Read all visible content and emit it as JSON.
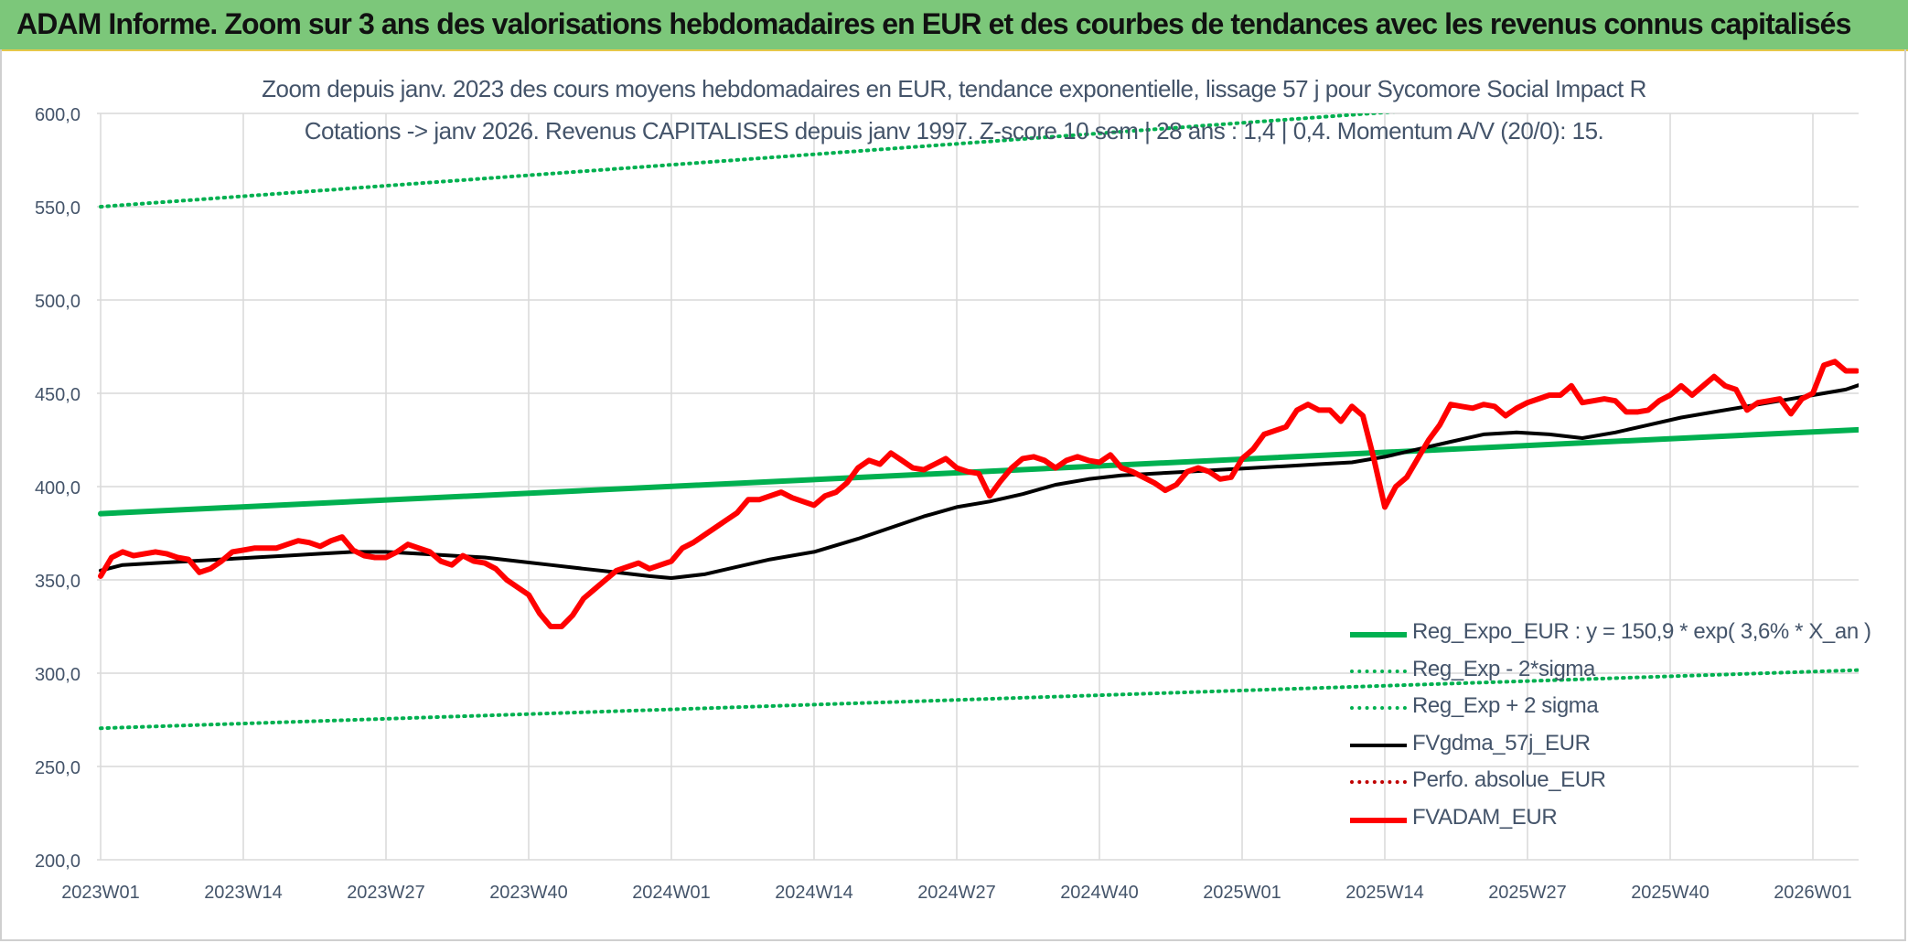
{
  "banner": {
    "title": "ADAM Informe. Zoom sur 3 ans des valorisations hebdomadaires en EUR et des courbes de tendances avec les revenus connus capitalisés"
  },
  "colors": {
    "banner_bg": "#7cc77a",
    "trend_green": "#00b050",
    "price_red": "#ff0000",
    "smooth_black": "#000000",
    "text": "#44546a",
    "grid": "#d9d9d9"
  },
  "chart_data": {
    "type": "line",
    "title": "Zoom depuis janv. 2023 des cours moyens hebdomadaires en EUR, tendance exponentielle, lissage 57 j pour Sycomore Social Impact R",
    "subtitle": "Cotations -> janv 2026. Revenus CAPITALISES depuis janv 1997. Z-score 10 sem | 28 ans : 1,4 | 0,4. Momentum A/V (20/0): 15.",
    "xlabel": "",
    "ylabel": "",
    "ylim": [
      200,
      600
    ],
    "yticks": [
      "200,0",
      "250,0",
      "300,0",
      "350,0",
      "400,0",
      "450,0",
      "500,0",
      "550,0",
      "600,0"
    ],
    "xticks": [
      "2023W01",
      "2023W14",
      "2023W27",
      "2023W40",
      "2024W01",
      "2024W14",
      "2024W27",
      "2024W40",
      "2025W01",
      "2025W14",
      "2025W27",
      "2025W40",
      "2026W01"
    ],
    "grid": true,
    "legend_position": "bottom-right",
    "legend": [
      {
        "label": "Reg_Expo_EUR : y = 150,9 * exp( 3,6% *  X_an )",
        "style": "solid-thick",
        "color": "#00b050"
      },
      {
        "label": "Reg_Exp - 2*sigma",
        "style": "dotted",
        "color": "#00b050"
      },
      {
        "label": "Reg_Exp + 2 sigma",
        "style": "dotted",
        "color": "#00b050"
      },
      {
        "label": "FVgdma_57j_EUR",
        "style": "solid",
        "color": "#000000"
      },
      {
        "label": "Perfo. absolue_EUR",
        "style": "dotted",
        "color": "#c00000"
      },
      {
        "label": "FVADAM_EUR",
        "style": "solid-thick",
        "color": "#ff0000"
      }
    ],
    "series": [
      {
        "name": "Reg_Expo_EUR : y = 150,9 * exp( 3,6% *  X_an )",
        "color": "#00b050",
        "style": "solid-thick",
        "points": [
          [
            0,
            385.5
          ],
          [
            162,
            431
          ]
        ]
      },
      {
        "name": "Reg_Exp - 2*sigma",
        "color": "#00b050",
        "style": "dotted",
        "points": [
          [
            0,
            270.5
          ],
          [
            162,
            302
          ]
        ]
      },
      {
        "name": "Reg_Exp + 2 sigma",
        "color": "#00b050",
        "style": "dotted",
        "points": [
          [
            0,
            550
          ],
          [
            162,
            620
          ]
        ]
      },
      {
        "name": "FVgdma_57j_EUR",
        "color": "#000000",
        "style": "solid",
        "points": [
          [
            0,
            355
          ],
          [
            2,
            358
          ],
          [
            5,
            359
          ],
          [
            8,
            360
          ],
          [
            11,
            361
          ],
          [
            14,
            362
          ],
          [
            17,
            363
          ],
          [
            20,
            364
          ],
          [
            23,
            365
          ],
          [
            26,
            365
          ],
          [
            29,
            364
          ],
          [
            32,
            363
          ],
          [
            35,
            362
          ],
          [
            38,
            360
          ],
          [
            41,
            358
          ],
          [
            44,
            356
          ],
          [
            47,
            354
          ],
          [
            50,
            352
          ],
          [
            52,
            351
          ],
          [
            55,
            353
          ],
          [
            58,
            357
          ],
          [
            61,
            361
          ],
          [
            65,
            365
          ],
          [
            69,
            372
          ],
          [
            72,
            378
          ],
          [
            75,
            384
          ],
          [
            78,
            389
          ],
          [
            81,
            392
          ],
          [
            84,
            396
          ],
          [
            87,
            401
          ],
          [
            90,
            404
          ],
          [
            93,
            406
          ],
          [
            96,
            407
          ],
          [
            99,
            408
          ],
          [
            102,
            409
          ],
          [
            105,
            410
          ],
          [
            108,
            411
          ],
          [
            111,
            412
          ],
          [
            114,
            413
          ],
          [
            117,
            416
          ],
          [
            120,
            420
          ],
          [
            123,
            424
          ],
          [
            126,
            428
          ],
          [
            129,
            429
          ],
          [
            132,
            428
          ],
          [
            135,
            426
          ],
          [
            138,
            429
          ],
          [
            141,
            433
          ],
          [
            144,
            437
          ],
          [
            147,
            440
          ],
          [
            150,
            443
          ],
          [
            153,
            446
          ],
          [
            156,
            449
          ],
          [
            159,
            452
          ],
          [
            162,
            458
          ]
        ]
      },
      {
        "name": "FVADAM_EUR",
        "color": "#ff0000",
        "style": "solid-thick",
        "points": [
          [
            0,
            352
          ],
          [
            1,
            362
          ],
          [
            2,
            365
          ],
          [
            3,
            363
          ],
          [
            5,
            365
          ],
          [
            6,
            364
          ],
          [
            7,
            362
          ],
          [
            8,
            361
          ],
          [
            9,
            354
          ],
          [
            10,
            356
          ],
          [
            11,
            360
          ],
          [
            12,
            365
          ],
          [
            13,
            366
          ],
          [
            14,
            367
          ],
          [
            16,
            367
          ],
          [
            17,
            369
          ],
          [
            18,
            371
          ],
          [
            19,
            370
          ],
          [
            20,
            368
          ],
          [
            21,
            371
          ],
          [
            22,
            373
          ],
          [
            23,
            366
          ],
          [
            24,
            363
          ],
          [
            25,
            362
          ],
          [
            26,
            362
          ],
          [
            27,
            365
          ],
          [
            28,
            369
          ],
          [
            29,
            367
          ],
          [
            30,
            365
          ],
          [
            31,
            360
          ],
          [
            32,
            358
          ],
          [
            33,
            363
          ],
          [
            34,
            360
          ],
          [
            35,
            359
          ],
          [
            36,
            356
          ],
          [
            37,
            350
          ],
          [
            38,
            346
          ],
          [
            39,
            342
          ],
          [
            40,
            332
          ],
          [
            41,
            325
          ],
          [
            42,
            325
          ],
          [
            43,
            331
          ],
          [
            44,
            340
          ],
          [
            45,
            345
          ],
          [
            46,
            350
          ],
          [
            47,
            355
          ],
          [
            48,
            357
          ],
          [
            49,
            359
          ],
          [
            50,
            356
          ],
          [
            51,
            358
          ],
          [
            52,
            360
          ],
          [
            53,
            367
          ],
          [
            54,
            370
          ],
          [
            55,
            374
          ],
          [
            56,
            378
          ],
          [
            57,
            382
          ],
          [
            58,
            386
          ],
          [
            59,
            393
          ],
          [
            60,
            393
          ],
          [
            61,
            395
          ],
          [
            62,
            397
          ],
          [
            63,
            394
          ],
          [
            64,
            392
          ],
          [
            65,
            390
          ],
          [
            66,
            395
          ],
          [
            67,
            397
          ],
          [
            68,
            402
          ],
          [
            69,
            410
          ],
          [
            70,
            414
          ],
          [
            71,
            412
          ],
          [
            72,
            418
          ],
          [
            73,
            414
          ],
          [
            74,
            410
          ],
          [
            75,
            409
          ],
          [
            76,
            412
          ],
          [
            77,
            415
          ],
          [
            78,
            410
          ],
          [
            79,
            408
          ],
          [
            80,
            407
          ],
          [
            81,
            395
          ],
          [
            82,
            403
          ],
          [
            83,
            410
          ],
          [
            84,
            415
          ],
          [
            85,
            416
          ],
          [
            86,
            414
          ],
          [
            87,
            410
          ],
          [
            88,
            414
          ],
          [
            89,
            416
          ],
          [
            90,
            414
          ],
          [
            91,
            413
          ],
          [
            92,
            417
          ],
          [
            93,
            410
          ],
          [
            94,
            408
          ],
          [
            95,
            405
          ],
          [
            96,
            402
          ],
          [
            97,
            398
          ],
          [
            98,
            401
          ],
          [
            99,
            408
          ],
          [
            100,
            410
          ],
          [
            101,
            408
          ],
          [
            102,
            404
          ],
          [
            103,
            405
          ],
          [
            104,
            415
          ],
          [
            105,
            420
          ],
          [
            106,
            428
          ],
          [
            107,
            430
          ],
          [
            108,
            432
          ],
          [
            109,
            441
          ],
          [
            110,
            444
          ],
          [
            111,
            441
          ],
          [
            112,
            441
          ],
          [
            113,
            435
          ],
          [
            114,
            443
          ],
          [
            115,
            438
          ],
          [
            116,
            415
          ],
          [
            117,
            389
          ],
          [
            118,
            400
          ],
          [
            119,
            405
          ],
          [
            120,
            415
          ],
          [
            121,
            425
          ],
          [
            122,
            433
          ],
          [
            123,
            444
          ],
          [
            124,
            443
          ],
          [
            125,
            442
          ],
          [
            126,
            444
          ],
          [
            127,
            443
          ],
          [
            128,
            438
          ],
          [
            129,
            442
          ],
          [
            130,
            445
          ],
          [
            131,
            447
          ],
          [
            132,
            449
          ],
          [
            133,
            449
          ],
          [
            134,
            454
          ],
          [
            135,
            445
          ],
          [
            136,
            446
          ],
          [
            137,
            447
          ],
          [
            138,
            446
          ],
          [
            139,
            440
          ],
          [
            140,
            440
          ],
          [
            141,
            441
          ],
          [
            142,
            446
          ],
          [
            143,
            449
          ],
          [
            144,
            454
          ],
          [
            145,
            449
          ],
          [
            146,
            454
          ],
          [
            147,
            459
          ],
          [
            148,
            454
          ],
          [
            149,
            452
          ],
          [
            150,
            441
          ],
          [
            151,
            445
          ],
          [
            152,
            446
          ],
          [
            153,
            447
          ],
          [
            154,
            439
          ],
          [
            155,
            447
          ],
          [
            156,
            450
          ],
          [
            157,
            465
          ],
          [
            158,
            467
          ],
          [
            159,
            462
          ],
          [
            160,
            462
          ]
        ]
      }
    ]
  }
}
